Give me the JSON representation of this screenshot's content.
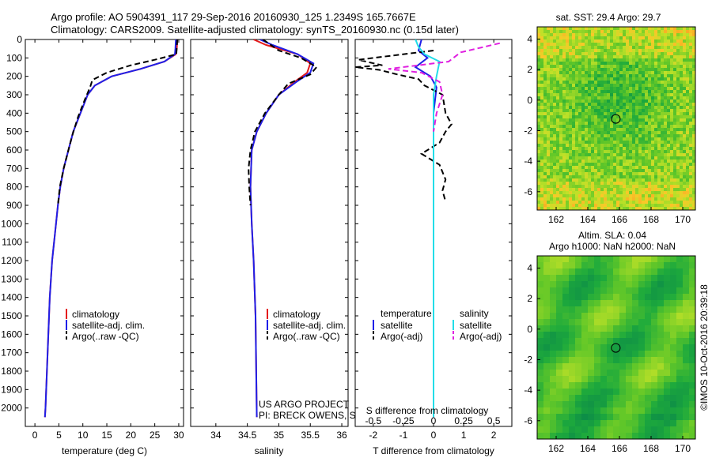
{
  "header": {
    "title_line1": "Argo profile: AO 5904391_117 29-Sep-2016 20160930_125 1.2349S 165.7667E",
    "title_line2": "Climatology: CARS2009. Satellite-adjusted climatology: synTS_20160930.nc (0.15d later)"
  },
  "credits": {
    "project": "US ARGO PROJECT",
    "pi": "PI: BRECK OWENS, STEVE JAYNE, P.E. ROBBINS",
    "stamp": "©IMOS 10-Oct-2016 20:39:18"
  },
  "colors": {
    "climatology": "#e41a1c",
    "satellite": "#1f1fe8",
    "argo": "#000000",
    "salinity_satellite": "#22dde8",
    "salinity_argo": "#e020e0"
  },
  "chart_data": [
    {
      "id": "temperature",
      "type": "line",
      "xlabel": "temperature (deg C)",
      "ylabel": "",
      "xlim": [
        -2,
        31
      ],
      "ylim": [
        2100,
        0
      ],
      "xticks": [
        0,
        5,
        10,
        15,
        20,
        25,
        30
      ],
      "yticks": [
        0,
        100,
        200,
        300,
        400,
        500,
        600,
        700,
        800,
        900,
        1000,
        1100,
        1200,
        1300,
        1400,
        1500,
        1600,
        1700,
        1800,
        1900,
        2000
      ],
      "legend": [
        "climatology",
        "satellite-adj. clim.",
        "Argo(..raw -QC)"
      ],
      "series": [
        {
          "name": "climatology",
          "style": "solid",
          "color": "#e41a1c",
          "points": [
            [
              29.7,
              0
            ],
            [
              29.6,
              50
            ],
            [
              29.4,
              80
            ],
            [
              27,
              120
            ],
            [
              22,
              160
            ],
            [
              16,
              200
            ],
            [
              12.5,
              250
            ],
            [
              11,
              300
            ],
            [
              9.5,
              400
            ],
            [
              8,
              500
            ],
            [
              7,
              600
            ],
            [
              6,
              700
            ],
            [
              5.3,
              800
            ],
            [
              4.8,
              900
            ],
            [
              4.4,
              1000
            ],
            [
              3.6,
              1200
            ],
            [
              3.1,
              1400
            ],
            [
              2.8,
              1600
            ],
            [
              2.5,
              1800
            ],
            [
              2.2,
              2000
            ],
            [
              2.1,
              2050
            ]
          ]
        },
        {
          "name": "satellite-adj. clim.",
          "style": "solid",
          "color": "#1f1fe8",
          "points": [
            [
              29.4,
              0
            ],
            [
              29.3,
              50
            ],
            [
              29.2,
              80
            ],
            [
              27,
              120
            ],
            [
              22,
              160
            ],
            [
              16,
              200
            ],
            [
              12.5,
              250
            ],
            [
              11,
              300
            ],
            [
              9.5,
              400
            ],
            [
              8,
              500
            ],
            [
              7,
              600
            ],
            [
              6,
              700
            ],
            [
              5.3,
              800
            ],
            [
              4.8,
              900
            ],
            [
              4.4,
              1000
            ],
            [
              3.6,
              1200
            ],
            [
              3.1,
              1400
            ],
            [
              2.8,
              1600
            ],
            [
              2.5,
              1800
            ],
            [
              2.2,
              2000
            ],
            [
              2.1,
              2050
            ]
          ]
        },
        {
          "name": "Argo(..raw -QC)",
          "style": "dashed",
          "color": "#000000",
          "points": [
            [
              29.7,
              0
            ],
            [
              29.5,
              80
            ],
            [
              25,
              110
            ],
            [
              20,
              140
            ],
            [
              15,
              180
            ],
            [
              12,
              220
            ],
            [
              11.5,
              260
            ],
            [
              10.5,
              320
            ],
            [
              9,
              420
            ],
            [
              7.8,
              520
            ],
            [
              7,
              600
            ],
            [
              6,
              700
            ],
            [
              5.2,
              800
            ],
            [
              4.8,
              900
            ]
          ]
        }
      ]
    },
    {
      "id": "salinity",
      "type": "line",
      "xlabel": "salinity",
      "ylabel": "",
      "xlim": [
        33.6,
        36.1
      ],
      "ylim": [
        2100,
        0
      ],
      "xticks": [
        34,
        34.5,
        35,
        35.5,
        36
      ],
      "legend": [
        "climatology",
        "satellite-adj. clim.",
        "Argo(..raw -QC)"
      ],
      "series": [
        {
          "name": "climatology",
          "style": "solid",
          "color": "#e41a1c",
          "points": [
            [
              34.6,
              0
            ],
            [
              34.8,
              30
            ],
            [
              35.3,
              80
            ],
            [
              35.5,
              130
            ],
            [
              35.45,
              180
            ],
            [
              35.25,
              230
            ],
            [
              35.0,
              300
            ],
            [
              34.8,
              400
            ],
            [
              34.65,
              500
            ],
            [
              34.57,
              600
            ],
            [
              34.55,
              800
            ],
            [
              34.57,
              1000
            ],
            [
              34.6,
              1200
            ],
            [
              34.63,
              1500
            ],
            [
              34.65,
              2050
            ]
          ]
        },
        {
          "name": "satellite-adj. clim.",
          "style": "solid",
          "color": "#1f1fe8",
          "points": [
            [
              34.7,
              0
            ],
            [
              34.9,
              30
            ],
            [
              35.3,
              80
            ],
            [
              35.55,
              130
            ],
            [
              35.5,
              180
            ],
            [
              35.28,
              230
            ],
            [
              35.0,
              300
            ],
            [
              34.8,
              400
            ],
            [
              34.65,
              500
            ],
            [
              34.57,
              600
            ],
            [
              34.55,
              800
            ],
            [
              34.57,
              1000
            ],
            [
              34.6,
              1200
            ],
            [
              34.63,
              1500
            ],
            [
              34.65,
              2050
            ]
          ]
        },
        {
          "name": "Argo(..raw -QC)",
          "style": "dashed",
          "color": "#000000",
          "points": [
            [
              34.75,
              0
            ],
            [
              35.0,
              60
            ],
            [
              35.35,
              100
            ],
            [
              35.6,
              150
            ],
            [
              35.5,
              190
            ],
            [
              35.15,
              240
            ],
            [
              35.0,
              300
            ],
            [
              34.78,
              400
            ],
            [
              34.62,
              500
            ],
            [
              34.55,
              600
            ],
            [
              34.52,
              700
            ],
            [
              34.53,
              800
            ],
            [
              34.55,
              900
            ]
          ]
        }
      ]
    },
    {
      "id": "difference",
      "type": "line",
      "xlabel": "T difference from climatology",
      "top_xlabel": "S difference from climatology",
      "xlim": [
        -2.6,
        2.6
      ],
      "ylim": [
        2100,
        0
      ],
      "xticks": [
        -2,
        -1,
        0,
        1,
        2
      ],
      "top_xticks": [
        "-0.5",
        "-0.25",
        "0",
        "0.25",
        "0.5"
      ],
      "legend": {
        "temperature": [
          "satellite",
          "Argo(-adj)"
        ],
        "salinity": [
          "satellite",
          "Argo(-adj)"
        ]
      },
      "legend_headers": [
        "temperature",
        "salinity"
      ],
      "series": [
        {
          "name": "T satellite",
          "style": "solid",
          "color": "#1f1fe8",
          "points": [
            [
              -0.4,
              0
            ],
            [
              -0.5,
              60
            ],
            [
              -0.2,
              100
            ],
            [
              -0.6,
              150
            ],
            [
              -0.1,
              200
            ],
            [
              0.1,
              260
            ],
            [
              0,
              400
            ],
            [
              0,
              2050
            ]
          ]
        },
        {
          "name": "T Argo(-adj)",
          "style": "dashed",
          "color": "#000000",
          "points": [
            [
              0,
              60
            ],
            [
              -2.5,
              110
            ],
            [
              -1.7,
              140
            ],
            [
              -2.6,
              150
            ],
            [
              -1.8,
              165
            ],
            [
              -1.2,
              190
            ],
            [
              -0.5,
              215
            ],
            [
              -0.3,
              250
            ],
            [
              0.3,
              300
            ],
            [
              0.4,
              400
            ],
            [
              0.6,
              460
            ],
            [
              0.4,
              500
            ],
            [
              0.2,
              560
            ],
            [
              -0.4,
              620
            ],
            [
              0.2,
              680
            ],
            [
              0.4,
              760
            ],
            [
              0.3,
              820
            ],
            [
              0.4,
              880
            ]
          ]
        },
        {
          "name": "S satellite",
          "style": "solid",
          "color": "#22dde8",
          "points": [
            [
              -0.6,
              0
            ],
            [
              -0.5,
              40
            ],
            [
              -0.3,
              80
            ],
            [
              0.2,
              120
            ],
            [
              0.1,
              200
            ],
            [
              0,
              300
            ],
            [
              0,
              2050
            ]
          ]
        },
        {
          "name": "S Argo(-adj)",
          "style": "dashed",
          "color": "#e020e0",
          "points": [
            [
              2.2,
              20
            ],
            [
              0.9,
              70
            ],
            [
              0.5,
              120
            ],
            [
              -1.5,
              160
            ],
            [
              -0.4,
              180
            ],
            [
              0.2,
              230
            ],
            [
              0.3,
              300
            ],
            [
              0.1,
              400
            ],
            [
              0,
              500
            ]
          ]
        }
      ]
    }
  ],
  "maps": [
    {
      "id": "sst",
      "title": "sat. SST: 29.4 Argo: 29.7",
      "subtitle": "",
      "xticks": [
        162,
        164,
        166,
        168,
        170
      ],
      "yticks": [
        4,
        2,
        0,
        -2,
        -4,
        -6
      ],
      "xlim": [
        160.8,
        170.8
      ],
      "ylim": [
        -7.2,
        4.8
      ],
      "argo_marker": {
        "lon": 165.77,
        "lat": -1.23
      }
    },
    {
      "id": "sla",
      "title": "Altim. SLA: 0.04",
      "subtitle": "Argo h1000: NaN h2000: NaN",
      "xticks": [
        162,
        164,
        166,
        168,
        170
      ],
      "yticks": [
        4,
        2,
        0,
        -2,
        -4,
        -6
      ],
      "xlim": [
        160.8,
        170.8
      ],
      "ylim": [
        -7.2,
        4.8
      ],
      "argo_marker": {
        "lon": 165.77,
        "lat": -1.23
      }
    }
  ]
}
